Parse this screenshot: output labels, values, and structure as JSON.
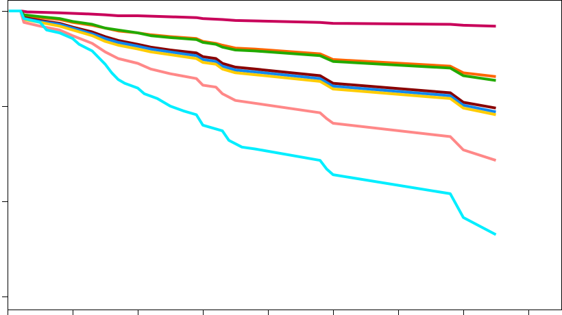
{
  "chart_data": {
    "type": "line",
    "title": "",
    "xlabel": "",
    "ylabel": "",
    "xlim": [
      0,
      8.5
    ],
    "ylim": [
      0.7,
      1.0
    ],
    "x_ticks": [
      0,
      1,
      2,
      3,
      4,
      5,
      6,
      7,
      8
    ],
    "y_ticks": [
      0.7,
      0.8,
      0.9,
      1.0
    ],
    "grid": false,
    "legend": "none",
    "series": [
      {
        "color": "#c8005a",
        "points": [
          [
            0.02,
            1.0
          ],
          [
            0.2,
            1.0
          ],
          [
            0.3,
            0.999
          ],
          [
            0.8,
            0.998
          ],
          [
            1.2,
            0.997
          ],
          [
            1.5,
            0.996
          ],
          [
            1.7,
            0.995
          ],
          [
            2.0,
            0.995
          ],
          [
            2.9,
            0.993
          ],
          [
            3.0,
            0.992
          ],
          [
            3.3,
            0.991
          ],
          [
            3.5,
            0.99
          ],
          [
            4.8,
            0.988
          ],
          [
            5.0,
            0.987
          ],
          [
            6.8,
            0.986
          ],
          [
            7.0,
            0.985
          ],
          [
            7.5,
            0.984
          ]
        ]
      },
      {
        "color": "#ff6600",
        "points": [
          [
            0.02,
            1.0
          ],
          [
            0.2,
            1.0
          ],
          [
            0.25,
            0.995
          ],
          [
            0.5,
            0.993
          ],
          [
            0.8,
            0.991
          ],
          [
            1.0,
            0.988
          ],
          [
            1.3,
            0.985
          ],
          [
            1.5,
            0.982
          ],
          [
            1.7,
            0.979
          ],
          [
            2.0,
            0.977
          ],
          [
            2.2,
            0.975
          ],
          [
            2.5,
            0.973
          ],
          [
            2.9,
            0.971
          ],
          [
            3.0,
            0.968
          ],
          [
            3.2,
            0.966
          ],
          [
            3.3,
            0.964
          ],
          [
            3.5,
            0.961
          ],
          [
            3.8,
            0.96
          ],
          [
            4.8,
            0.955
          ],
          [
            4.9,
            0.952
          ],
          [
            5.0,
            0.949
          ],
          [
            6.8,
            0.942
          ],
          [
            7.0,
            0.935
          ],
          [
            7.5,
            0.931
          ]
        ]
      },
      {
        "color": "#22aa00",
        "points": [
          [
            0.02,
            1.0
          ],
          [
            0.2,
            1.0
          ],
          [
            0.25,
            0.996
          ],
          [
            0.5,
            0.994
          ],
          [
            0.8,
            0.992
          ],
          [
            1.0,
            0.989
          ],
          [
            1.3,
            0.986
          ],
          [
            1.5,
            0.982
          ],
          [
            1.7,
            0.98
          ],
          [
            2.0,
            0.977
          ],
          [
            2.2,
            0.974
          ],
          [
            2.5,
            0.972
          ],
          [
            2.9,
            0.97
          ],
          [
            3.0,
            0.967
          ],
          [
            3.2,
            0.965
          ],
          [
            3.3,
            0.962
          ],
          [
            3.5,
            0.959
          ],
          [
            3.8,
            0.958
          ],
          [
            4.8,
            0.953
          ],
          [
            4.9,
            0.95
          ],
          [
            5.0,
            0.947
          ],
          [
            6.8,
            0.94
          ],
          [
            7.0,
            0.932
          ],
          [
            7.5,
            0.927
          ]
        ]
      },
      {
        "color": "#880000",
        "points": [
          [
            0.02,
            1.0
          ],
          [
            0.2,
            1.0
          ],
          [
            0.25,
            0.993
          ],
          [
            0.5,
            0.99
          ],
          [
            0.8,
            0.987
          ],
          [
            1.0,
            0.983
          ],
          [
            1.3,
            0.978
          ],
          [
            1.5,
            0.973
          ],
          [
            1.7,
            0.969
          ],
          [
            2.0,
            0.965
          ],
          [
            2.2,
            0.962
          ],
          [
            2.5,
            0.959
          ],
          [
            2.9,
            0.956
          ],
          [
            3.0,
            0.952
          ],
          [
            3.2,
            0.95
          ],
          [
            3.3,
            0.945
          ],
          [
            3.5,
            0.941
          ],
          [
            3.8,
            0.939
          ],
          [
            4.8,
            0.932
          ],
          [
            4.9,
            0.928
          ],
          [
            5.0,
            0.924
          ],
          [
            6.8,
            0.914
          ],
          [
            7.0,
            0.904
          ],
          [
            7.5,
            0.898
          ]
        ]
      },
      {
        "color": "#1188ee",
        "points": [
          [
            0.02,
            1.0
          ],
          [
            0.2,
            1.0
          ],
          [
            0.25,
            0.992
          ],
          [
            0.5,
            0.989
          ],
          [
            0.8,
            0.986
          ],
          [
            1.0,
            0.982
          ],
          [
            1.3,
            0.976
          ],
          [
            1.5,
            0.971
          ],
          [
            1.7,
            0.967
          ],
          [
            2.0,
            0.963
          ],
          [
            2.2,
            0.96
          ],
          [
            2.5,
            0.957
          ],
          [
            2.9,
            0.953
          ],
          [
            3.0,
            0.949
          ],
          [
            3.2,
            0.947
          ],
          [
            3.3,
            0.942
          ],
          [
            3.5,
            0.938
          ],
          [
            3.8,
            0.936
          ],
          [
            4.8,
            0.929
          ],
          [
            4.9,
            0.925
          ],
          [
            5.0,
            0.921
          ],
          [
            6.8,
            0.911
          ],
          [
            7.0,
            0.901
          ],
          [
            7.5,
            0.894
          ]
        ]
      },
      {
        "color": "#ffcc00",
        "points": [
          [
            0.02,
            1.0
          ],
          [
            0.2,
            1.0
          ],
          [
            0.25,
            0.991
          ],
          [
            0.5,
            0.988
          ],
          [
            0.8,
            0.984
          ],
          [
            1.0,
            0.98
          ],
          [
            1.3,
            0.974
          ],
          [
            1.5,
            0.968
          ],
          [
            1.7,
            0.964
          ],
          [
            2.0,
            0.96
          ],
          [
            2.2,
            0.957
          ],
          [
            2.5,
            0.954
          ],
          [
            2.9,
            0.95
          ],
          [
            3.0,
            0.946
          ],
          [
            3.2,
            0.944
          ],
          [
            3.3,
            0.939
          ],
          [
            3.5,
            0.935
          ],
          [
            3.8,
            0.933
          ],
          [
            4.8,
            0.926
          ],
          [
            4.9,
            0.922
          ],
          [
            5.0,
            0.918
          ],
          [
            6.8,
            0.908
          ],
          [
            7.0,
            0.898
          ],
          [
            7.5,
            0.891
          ]
        ]
      },
      {
        "color": "#ff8888",
        "points": [
          [
            0.02,
            1.0
          ],
          [
            0.2,
            1.0
          ],
          [
            0.25,
            0.988
          ],
          [
            0.5,
            0.984
          ],
          [
            0.8,
            0.98
          ],
          [
            1.0,
            0.974
          ],
          [
            1.3,
            0.966
          ],
          [
            1.5,
            0.957
          ],
          [
            1.7,
            0.95
          ],
          [
            2.0,
            0.945
          ],
          [
            2.2,
            0.939
          ],
          [
            2.5,
            0.934
          ],
          [
            2.9,
            0.929
          ],
          [
            3.0,
            0.922
          ],
          [
            3.2,
            0.92
          ],
          [
            3.3,
            0.913
          ],
          [
            3.5,
            0.906
          ],
          [
            3.8,
            0.903
          ],
          [
            4.8,
            0.893
          ],
          [
            4.9,
            0.887
          ],
          [
            5.0,
            0.882
          ],
          [
            6.8,
            0.868
          ],
          [
            7.0,
            0.854
          ],
          [
            7.5,
            0.843
          ]
        ]
      },
      {
        "color": "#00eeff",
        "points": [
          [
            0.02,
            1.0
          ],
          [
            0.2,
            1.0
          ],
          [
            0.25,
            0.992
          ],
          [
            0.5,
            0.988
          ],
          [
            0.6,
            0.98
          ],
          [
            0.8,
            0.977
          ],
          [
            1.0,
            0.971
          ],
          [
            1.1,
            0.965
          ],
          [
            1.3,
            0.958
          ],
          [
            1.4,
            0.951
          ],
          [
            1.5,
            0.944
          ],
          [
            1.6,
            0.935
          ],
          [
            1.7,
            0.928
          ],
          [
            1.8,
            0.924
          ],
          [
            2.0,
            0.919
          ],
          [
            2.1,
            0.913
          ],
          [
            2.3,
            0.908
          ],
          [
            2.5,
            0.9
          ],
          [
            2.7,
            0.895
          ],
          [
            2.9,
            0.891
          ],
          [
            3.0,
            0.88
          ],
          [
            3.1,
            0.878
          ],
          [
            3.3,
            0.874
          ],
          [
            3.4,
            0.864
          ],
          [
            3.6,
            0.857
          ],
          [
            3.8,
            0.855
          ],
          [
            4.8,
            0.843
          ],
          [
            4.9,
            0.834
          ],
          [
            5.0,
            0.828
          ],
          [
            6.8,
            0.808
          ],
          [
            7.0,
            0.783
          ],
          [
            7.5,
            0.765
          ]
        ]
      }
    ]
  }
}
